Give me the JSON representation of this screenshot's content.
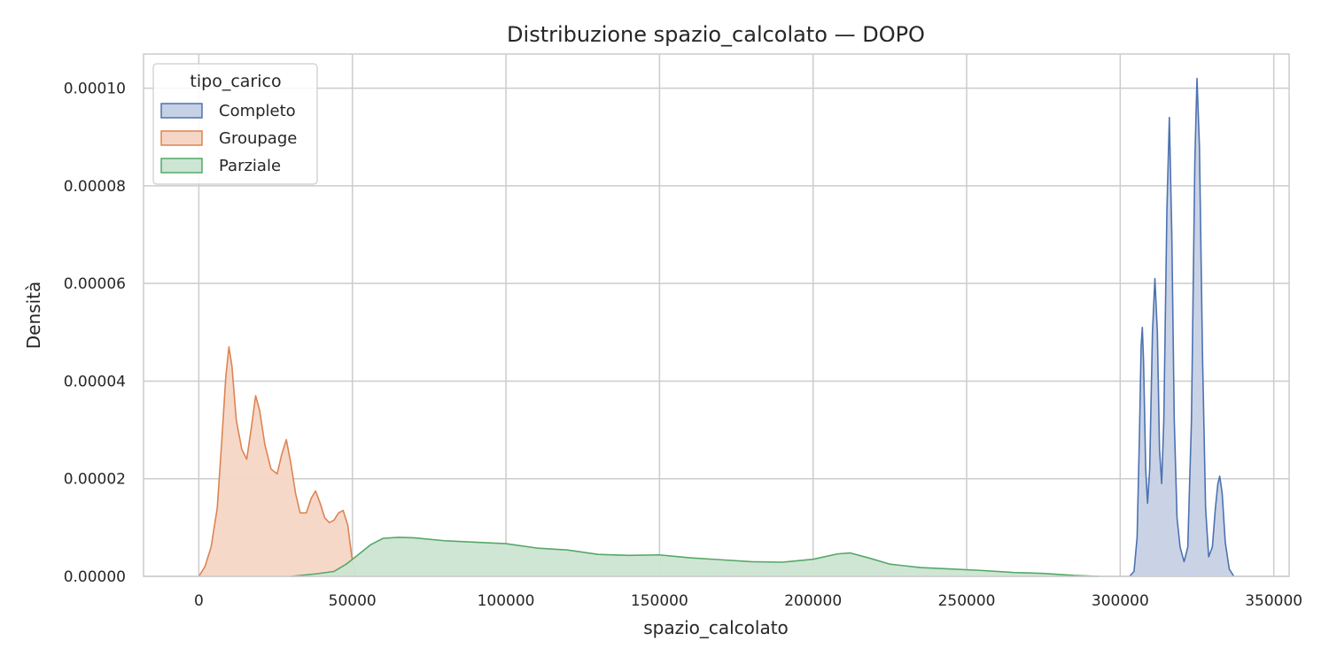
{
  "chart_data": {
    "type": "area",
    "title": "Distribuzione spazio_calcolato — DOPO",
    "xlabel": "spazio_calcolato",
    "ylabel": "Densità",
    "xlim": [
      -18000,
      355000
    ],
    "ylim": [
      0,
      0.000107
    ],
    "xticks": [
      0,
      50000,
      100000,
      150000,
      200000,
      250000,
      300000,
      350000
    ],
    "xtick_labels": [
      "0",
      "50000",
      "100000",
      "150000",
      "200000",
      "250000",
      "300000",
      "350000"
    ],
    "yticks": [
      0,
      2e-05,
      4e-05,
      6e-05,
      8e-05,
      0.0001
    ],
    "ytick_labels": [
      "0.00000",
      "0.00002",
      "0.00004",
      "0.00006",
      "0.00008",
      "0.00010"
    ],
    "grid": true,
    "legend": {
      "title": "tipo_carico",
      "placement": "top-left"
    },
    "series": [
      {
        "name": "Completo",
        "color": "#4c72b0",
        "fill": "#c7d1e5",
        "points": [
          [
            303000,
            0
          ],
          [
            304500,
            1e-06
          ],
          [
            305500,
            8e-06
          ],
          [
            306300,
            3e-05
          ],
          [
            306800,
            4.7e-05
          ],
          [
            307200,
            5.1e-05
          ],
          [
            307600,
            4.4e-05
          ],
          [
            308300,
            2.2e-05
          ],
          [
            308900,
            1.5e-05
          ],
          [
            309600,
            2.2e-05
          ],
          [
            310500,
            5e-05
          ],
          [
            311300,
            6.1e-05
          ],
          [
            312100,
            5e-05
          ],
          [
            312800,
            2.6e-05
          ],
          [
            313500,
            1.9e-05
          ],
          [
            314200,
            3.2e-05
          ],
          [
            315200,
            7.5e-05
          ],
          [
            316000,
            9.4e-05
          ],
          [
            316800,
            7e-05
          ],
          [
            317600,
            3.2e-05
          ],
          [
            318500,
            1.2e-05
          ],
          [
            319500,
            6e-06
          ],
          [
            320800,
            3e-06
          ],
          [
            322000,
            6e-06
          ],
          [
            323200,
            3.2e-05
          ],
          [
            324300,
            8.5e-05
          ],
          [
            325000,
            0.000102
          ],
          [
            325800,
            8.8e-05
          ],
          [
            326800,
            4.5e-05
          ],
          [
            327800,
            1.4e-05
          ],
          [
            328800,
            4e-06
          ],
          [
            330000,
            6e-06
          ],
          [
            331000,
            1.4e-05
          ],
          [
            331800,
            1.9e-05
          ],
          [
            332400,
            2.05e-05
          ],
          [
            333200,
            1.7e-05
          ],
          [
            334200,
            7e-06
          ],
          [
            335500,
            1.5e-06
          ],
          [
            337000,
            0
          ]
        ]
      },
      {
        "name": "Groupage",
        "color": "#dd8452",
        "fill": "#f5d6c6",
        "points": [
          [
            0,
            0
          ],
          [
            2000,
            2e-06
          ],
          [
            4000,
            6e-06
          ],
          [
            6000,
            1.4e-05
          ],
          [
            7500,
            2.8e-05
          ],
          [
            8800,
            4.1e-05
          ],
          [
            9800,
            4.7e-05
          ],
          [
            10800,
            4.3e-05
          ],
          [
            12200,
            3.2e-05
          ],
          [
            14000,
            2.6e-05
          ],
          [
            15600,
            2.4e-05
          ],
          [
            17000,
            3e-05
          ],
          [
            18500,
            3.7e-05
          ],
          [
            19800,
            3.4e-05
          ],
          [
            21500,
            2.7e-05
          ],
          [
            23500,
            2.2e-05
          ],
          [
            25500,
            2.1e-05
          ],
          [
            27000,
            2.5e-05
          ],
          [
            28500,
            2.8e-05
          ],
          [
            30000,
            2.3e-05
          ],
          [
            31500,
            1.7e-05
          ],
          [
            33000,
            1.3e-05
          ],
          [
            35000,
            1.3e-05
          ],
          [
            36600,
            1.6e-05
          ],
          [
            38000,
            1.75e-05
          ],
          [
            39500,
            1.5e-05
          ],
          [
            41000,
            1.2e-05
          ],
          [
            42500,
            1.1e-05
          ],
          [
            44000,
            1.15e-05
          ],
          [
            45500,
            1.3e-05
          ],
          [
            47000,
            1.35e-05
          ],
          [
            48500,
            1.05e-05
          ],
          [
            49800,
            4e-06
          ],
          [
            51200,
            0
          ]
        ]
      },
      {
        "name": "Parziale",
        "color": "#55a868",
        "fill": "#cde5d3",
        "points": [
          [
            30000,
            0
          ],
          [
            38000,
            5e-07
          ],
          [
            44000,
            1e-06
          ],
          [
            48000,
            2.5e-06
          ],
          [
            52000,
            4.5e-06
          ],
          [
            56000,
            6.5e-06
          ],
          [
            60000,
            7.8e-06
          ],
          [
            65000,
            8e-06
          ],
          [
            70000,
            7.9e-06
          ],
          [
            80000,
            7.3e-06
          ],
          [
            90000,
            7e-06
          ],
          [
            100000,
            6.7e-06
          ],
          [
            110000,
            5.8e-06
          ],
          [
            120000,
            5.4e-06
          ],
          [
            130000,
            4.5e-06
          ],
          [
            140000,
            4.3e-06
          ],
          [
            150000,
            4.4e-06
          ],
          [
            160000,
            3.8e-06
          ],
          [
            170000,
            3.4e-06
          ],
          [
            180000,
            3e-06
          ],
          [
            190000,
            2.9e-06
          ],
          [
            200000,
            3.5e-06
          ],
          [
            208000,
            4.6e-06
          ],
          [
            212000,
            4.8e-06
          ],
          [
            218000,
            3.8e-06
          ],
          [
            225000,
            2.5e-06
          ],
          [
            235000,
            1.8e-06
          ],
          [
            245000,
            1.5e-06
          ],
          [
            255000,
            1.2e-06
          ],
          [
            265000,
            8e-07
          ],
          [
            275000,
            6e-07
          ],
          [
            285000,
            2e-07
          ],
          [
            293000,
            0
          ]
        ]
      }
    ]
  }
}
